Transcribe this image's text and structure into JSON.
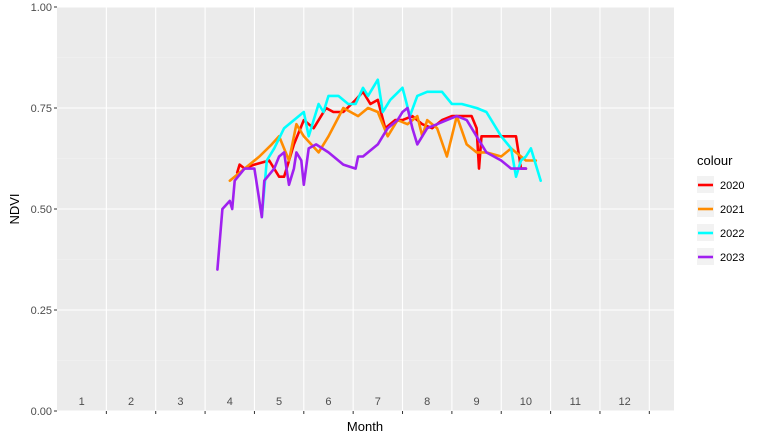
{
  "chart_data": {
    "type": "line",
    "xlabel": "Month",
    "ylabel": "NDVI",
    "ylim": [
      0,
      1
    ],
    "xlim": [
      0.5,
      13
    ],
    "y_ticks": [
      0,
      0.25,
      0.5,
      0.75,
      1
    ],
    "y_tick_labels": [
      "0.00",
      "0.25",
      "0.50",
      "0.75",
      "1.00"
    ],
    "month_labels": [
      "1",
      "2",
      "3",
      "4",
      "5",
      "6",
      "7",
      "8",
      "9",
      "10",
      "11",
      "12"
    ],
    "month_label_y": 0.015,
    "grid": true,
    "legend": {
      "title": "colour",
      "position": "right"
    },
    "series": [
      {
        "name": "2020",
        "color": "#ff0000",
        "x": [
          4.15,
          4.2,
          4.3,
          4.5,
          4.8,
          5.0,
          5.1,
          5.3,
          5.5,
          5.7,
          5.95,
          6.1,
          6.3,
          6.55,
          6.7,
          6.85,
          7.0,
          7.15,
          7.35,
          7.5,
          7.7,
          7.9,
          8.1,
          8.3,
          8.5,
          8.7,
          8.9,
          9.0,
          9.05,
          9.1,
          9.3,
          9.5,
          9.6,
          9.8,
          9.9,
          10.0
        ],
        "y": [
          0.59,
          0.61,
          0.6,
          0.61,
          0.62,
          0.58,
          0.58,
          0.66,
          0.72,
          0.7,
          0.75,
          0.74,
          0.74,
          0.77,
          0.79,
          0.76,
          0.77,
          0.7,
          0.72,
          0.72,
          0.73,
          0.71,
          0.7,
          0.72,
          0.73,
          0.73,
          0.73,
          0.7,
          0.6,
          0.68,
          0.68,
          0.68,
          0.68,
          0.68,
          0.6,
          0.6
        ]
      },
      {
        "name": "2021",
        "color": "#ff8c00",
        "x": [
          4.0,
          4.3,
          4.6,
          4.85,
          5.0,
          5.2,
          5.35,
          5.5,
          5.8,
          6.0,
          6.3,
          6.6,
          6.8,
          7.0,
          7.2,
          7.4,
          7.6,
          7.8,
          7.9,
          8.0,
          8.2,
          8.4,
          8.6,
          8.8,
          9.0,
          9.2,
          9.5,
          9.7,
          9.9,
          10.0,
          10.2
        ],
        "y": [
          0.57,
          0.6,
          0.63,
          0.66,
          0.68,
          0.62,
          0.71,
          0.68,
          0.64,
          0.68,
          0.75,
          0.73,
          0.75,
          0.74,
          0.68,
          0.72,
          0.71,
          0.73,
          0.68,
          0.72,
          0.7,
          0.63,
          0.73,
          0.66,
          0.64,
          0.64,
          0.63,
          0.65,
          0.63,
          0.62,
          0.62
        ]
      },
      {
        "name": "2022",
        "color": "#00ffff",
        "x": [
          4.65,
          4.75,
          4.9,
          5.1,
          5.3,
          5.5,
          5.6,
          5.8,
          5.9,
          6.0,
          6.2,
          6.4,
          6.55,
          6.7,
          6.8,
          6.9,
          7.0,
          7.1,
          7.25,
          7.5,
          7.65,
          7.8,
          8.0,
          8.3,
          8.5,
          8.7,
          9.0,
          9.2,
          9.5,
          9.7,
          9.8,
          9.9,
          10.0,
          10.1,
          10.3
        ],
        "y": [
          0.48,
          0.62,
          0.65,
          0.7,
          0.72,
          0.74,
          0.68,
          0.76,
          0.74,
          0.78,
          0.78,
          0.76,
          0.76,
          0.8,
          0.78,
          0.8,
          0.82,
          0.74,
          0.77,
          0.8,
          0.73,
          0.78,
          0.79,
          0.79,
          0.76,
          0.76,
          0.75,
          0.74,
          0.68,
          0.65,
          0.58,
          0.62,
          0.63,
          0.65,
          0.57
        ]
      },
      {
        "name": "2023",
        "color": "#a020f0",
        "x": [
          3.75,
          3.85,
          4.0,
          4.05,
          4.1,
          4.3,
          4.5,
          4.6,
          4.65,
          4.7,
          4.9,
          5.0,
          5.1,
          5.15,
          5.2,
          5.3,
          5.35,
          5.45,
          5.5,
          5.6,
          5.75,
          6.0,
          6.3,
          6.55,
          6.6,
          6.7,
          7.0,
          7.2,
          7.4,
          7.5,
          7.6,
          7.7,
          7.8,
          8.0,
          8.2,
          8.4,
          8.6,
          8.8,
          9.0,
          9.2,
          9.5,
          9.7,
          10.0
        ],
        "y": [
          0.35,
          0.5,
          0.52,
          0.5,
          0.57,
          0.6,
          0.6,
          0.52,
          0.48,
          0.57,
          0.6,
          0.63,
          0.64,
          0.6,
          0.56,
          0.6,
          0.64,
          0.62,
          0.56,
          0.65,
          0.66,
          0.64,
          0.61,
          0.6,
          0.63,
          0.63,
          0.66,
          0.7,
          0.72,
          0.74,
          0.75,
          0.7,
          0.66,
          0.7,
          0.71,
          0.72,
          0.73,
          0.72,
          0.68,
          0.64,
          0.62,
          0.6,
          0.6
        ]
      }
    ]
  }
}
